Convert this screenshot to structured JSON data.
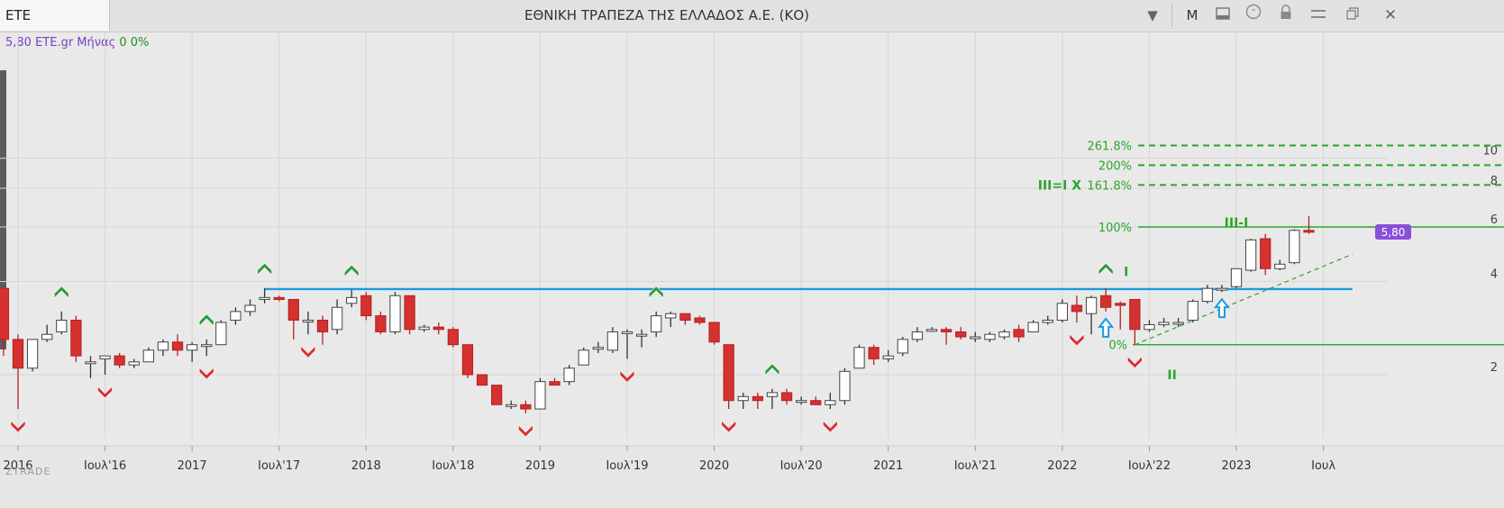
{
  "header": {
    "symbol": "ETE",
    "title": "ΕΘΝΙΚΗ ΤΡΑΠΕΖΑ ΤΗΣ ΕΛΛΑΔΟΣ Α.Ε. (ΚΟ)",
    "mode_label": "M"
  },
  "info": {
    "value_label": "5,80 ETE.gr Μήνας",
    "change": "0 0%"
  },
  "watermark": "ZTRADE",
  "colors": {
    "up": "#ffffff",
    "down": "#d63030",
    "support": "#1a9be0",
    "fib": "#2aa52a",
    "badge": "#8a4fd8"
  },
  "chart_data": {
    "type": "candlestick",
    "period": "monthly",
    "xlim": [
      "2016-01",
      "2023-09"
    ],
    "ylim": [
      1.0,
      11.0
    ],
    "y_scale": "log",
    "y_ticks": [
      2,
      4,
      6,
      8,
      10
    ],
    "x_ticks": [
      {
        "label": "2016",
        "date": "2016-01"
      },
      {
        "label": "Ιουλ'16",
        "date": "2016-07"
      },
      {
        "label": "2017",
        "date": "2017-01"
      },
      {
        "label": "Ιουλ'17",
        "date": "2017-07"
      },
      {
        "label": "2018",
        "date": "2018-01"
      },
      {
        "label": "Ιουλ'18",
        "date": "2018-07"
      },
      {
        "label": "2019",
        "date": "2019-01"
      },
      {
        "label": "Ιουλ'19",
        "date": "2019-07"
      },
      {
        "label": "2020",
        "date": "2020-01"
      },
      {
        "label": "Ιουλ'20",
        "date": "2020-07"
      },
      {
        "label": "2021",
        "date": "2021-01"
      },
      {
        "label": "Ιουλ'21",
        "date": "2021-07"
      },
      {
        "label": "2022",
        "date": "2022-01"
      },
      {
        "label": "Ιουλ'22",
        "date": "2022-07"
      },
      {
        "label": "2023",
        "date": "2023-01"
      },
      {
        "label": "Ιουλ",
        "date": "2023-07"
      }
    ],
    "last_price_label": "5,80",
    "last_price": 5.8,
    "candles": [
      [
        "2015-12",
        3.8,
        3.8,
        2.3,
        2.6
      ],
      [
        "2016-01",
        2.6,
        2.7,
        1.55,
        2.1
      ],
      [
        "2016-02",
        2.1,
        2.6,
        2.05,
        2.6
      ],
      [
        "2016-03",
        2.6,
        2.9,
        2.55,
        2.7
      ],
      [
        "2016-04",
        2.75,
        3.2,
        2.7,
        3.0
      ],
      [
        "2016-05",
        3.0,
        3.1,
        2.2,
        2.3
      ],
      [
        "2016-06",
        2.2,
        2.3,
        1.95,
        2.2
      ],
      [
        "2016-07",
        2.25,
        2.3,
        2.0,
        2.3
      ],
      [
        "2016-08",
        2.3,
        2.35,
        2.1,
        2.15
      ],
      [
        "2016-09",
        2.15,
        2.25,
        2.1,
        2.2
      ],
      [
        "2016-10",
        2.2,
        2.45,
        2.2,
        2.4
      ],
      [
        "2016-11",
        2.4,
        2.6,
        2.3,
        2.55
      ],
      [
        "2016-12",
        2.55,
        2.7,
        2.3,
        2.4
      ],
      [
        "2017-01",
        2.4,
        2.55,
        2.2,
        2.5
      ],
      [
        "2017-02",
        2.5,
        2.6,
        2.3,
        2.5
      ],
      [
        "2017-03",
        2.5,
        3.0,
        2.5,
        2.95
      ],
      [
        "2017-04",
        3.0,
        3.3,
        2.9,
        3.2
      ],
      [
        "2017-05",
        3.2,
        3.5,
        3.1,
        3.35
      ],
      [
        "2017-06",
        3.5,
        3.8,
        3.4,
        3.55
      ],
      [
        "2017-07",
        3.55,
        3.6,
        3.45,
        3.5
      ],
      [
        "2017-08",
        3.5,
        3.5,
        2.6,
        3.0
      ],
      [
        "2017-09",
        3.0,
        3.2,
        2.7,
        3.0
      ],
      [
        "2017-10",
        3.0,
        3.1,
        2.5,
        2.75
      ],
      [
        "2017-11",
        2.8,
        3.5,
        2.7,
        3.3
      ],
      [
        "2017-12",
        3.4,
        3.75,
        3.3,
        3.55
      ],
      [
        "2018-01",
        3.6,
        3.7,
        3.0,
        3.1
      ],
      [
        "2018-02",
        3.1,
        3.2,
        2.7,
        2.75
      ],
      [
        "2018-03",
        2.75,
        3.7,
        2.7,
        3.6
      ],
      [
        "2018-04",
        3.6,
        3.6,
        2.7,
        2.8
      ],
      [
        "2018-05",
        2.8,
        2.9,
        2.75,
        2.85
      ],
      [
        "2018-06",
        2.85,
        2.95,
        2.7,
        2.8
      ],
      [
        "2018-07",
        2.8,
        2.85,
        2.45,
        2.5
      ],
      [
        "2018-08",
        2.5,
        2.5,
        1.95,
        2.0
      ],
      [
        "2018-09",
        2.0,
        2.0,
        1.85,
        1.85
      ],
      [
        "2018-10",
        1.85,
        1.85,
        1.6,
        1.6
      ],
      [
        "2018-11",
        1.6,
        1.65,
        1.55,
        1.6
      ],
      [
        "2018-12",
        1.6,
        1.65,
        1.5,
        1.55
      ],
      [
        "2019-01",
        1.55,
        1.95,
        1.55,
        1.9
      ],
      [
        "2019-02",
        1.9,
        1.95,
        1.85,
        1.85
      ],
      [
        "2019-03",
        1.9,
        2.15,
        1.85,
        2.1
      ],
      [
        "2019-04",
        2.15,
        2.45,
        2.15,
        2.4
      ],
      [
        "2019-05",
        2.45,
        2.55,
        2.35,
        2.45
      ],
      [
        "2019-06",
        2.4,
        2.85,
        2.35,
        2.75
      ],
      [
        "2019-07",
        2.75,
        2.8,
        2.25,
        2.75
      ],
      [
        "2019-08",
        2.7,
        2.8,
        2.45,
        2.7
      ],
      [
        "2019-09",
        2.75,
        3.2,
        2.65,
        3.1
      ],
      [
        "2019-10",
        3.05,
        3.2,
        2.85,
        3.15
      ],
      [
        "2019-11",
        3.15,
        3.15,
        2.9,
        3.0
      ],
      [
        "2019-12",
        3.05,
        3.1,
        2.9,
        2.95
      ],
      [
        "2020-01",
        2.95,
        2.95,
        2.5,
        2.55
      ],
      [
        "2020-02",
        2.5,
        2.5,
        1.55,
        1.65
      ],
      [
        "2020-03",
        1.65,
        1.75,
        1.55,
        1.7
      ],
      [
        "2020-04",
        1.7,
        1.75,
        1.55,
        1.65
      ],
      [
        "2020-05",
        1.7,
        1.8,
        1.55,
        1.75
      ],
      [
        "2020-06",
        1.75,
        1.8,
        1.6,
        1.65
      ],
      [
        "2020-07",
        1.65,
        1.7,
        1.6,
        1.65
      ],
      [
        "2020-08",
        1.65,
        1.7,
        1.6,
        1.6
      ],
      [
        "2020-09",
        1.6,
        1.75,
        1.55,
        1.65
      ],
      [
        "2020-10",
        1.65,
        2.1,
        1.6,
        2.05
      ],
      [
        "2020-11",
        2.1,
        2.5,
        2.1,
        2.45
      ],
      [
        "2020-12",
        2.45,
        2.5,
        2.15,
        2.25
      ],
      [
        "2021-01",
        2.25,
        2.4,
        2.2,
        2.3
      ],
      [
        "2021-02",
        2.35,
        2.65,
        2.3,
        2.6
      ],
      [
        "2021-03",
        2.6,
        2.85,
        2.55,
        2.75
      ],
      [
        "2021-04",
        2.8,
        2.85,
        2.75,
        2.8
      ],
      [
        "2021-05",
        2.8,
        2.85,
        2.5,
        2.75
      ],
      [
        "2021-06",
        2.75,
        2.85,
        2.6,
        2.65
      ],
      [
        "2021-07",
        2.65,
        2.75,
        2.55,
        2.65
      ],
      [
        "2021-08",
        2.6,
        2.75,
        2.55,
        2.7
      ],
      [
        "2021-09",
        2.65,
        2.8,
        2.6,
        2.75
      ],
      [
        "2021-10",
        2.8,
        2.9,
        2.55,
        2.65
      ],
      [
        "2021-11",
        2.75,
        3.0,
        2.75,
        2.95
      ],
      [
        "2021-12",
        2.95,
        3.1,
        2.9,
        3.0
      ],
      [
        "2022-01",
        3.0,
        3.5,
        2.95,
        3.4
      ],
      [
        "2022-02",
        3.35,
        3.6,
        2.95,
        3.2
      ],
      [
        "2022-03",
        3.15,
        3.6,
        2.7,
        3.55
      ],
      [
        "2022-04",
        3.6,
        3.8,
        3.2,
        3.3
      ],
      [
        "2022-05",
        3.4,
        3.45,
        2.8,
        3.35
      ],
      [
        "2022-06",
        3.5,
        3.5,
        2.5,
        2.8
      ],
      [
        "2022-07",
        2.8,
        3.0,
        2.75,
        2.9
      ],
      [
        "2022-08",
        2.9,
        3.05,
        2.85,
        2.95
      ],
      [
        "2022-09",
        2.95,
        3.05,
        2.85,
        2.95
      ],
      [
        "2022-10",
        3.0,
        3.5,
        2.95,
        3.45
      ],
      [
        "2022-11",
        3.45,
        3.9,
        3.4,
        3.8
      ],
      [
        "2022-12",
        3.75,
        3.9,
        3.7,
        3.8
      ],
      [
        "2023-01",
        3.85,
        4.4,
        3.8,
        4.4
      ],
      [
        "2023-02",
        4.35,
        5.5,
        4.3,
        5.45
      ],
      [
        "2023-03",
        5.5,
        5.7,
        4.2,
        4.4
      ],
      [
        "2023-04",
        4.4,
        4.7,
        4.35,
        4.55
      ],
      [
        "2023-05",
        4.6,
        5.9,
        4.55,
        5.85
      ],
      [
        "2023-06",
        5.85,
        6.5,
        5.7,
        5.8
      ]
    ],
    "support_line": {
      "label": "",
      "value": 3.78,
      "from": "2017-06",
      "to": "2023-09"
    },
    "fibonacci": {
      "levels": [
        {
          "label": "0%",
          "value": 2.5,
          "style": "solid"
        },
        {
          "label": "100%",
          "value": 6.0,
          "style": "solid"
        },
        {
          "label": "161.8%",
          "value": 8.2,
          "style": "dashed"
        },
        {
          "label": "200%",
          "value": 9.5,
          "style": "dashed"
        },
        {
          "label": "261.8%",
          "value": 11.0,
          "style": "dashed"
        }
      ],
      "trendline": {
        "from": [
          "2022-06",
          2.5
        ],
        "to": [
          "2023-09",
          4.9
        ]
      }
    },
    "annotations": [
      {
        "text": "III=I X",
        "date": "2022-01",
        "value": 8.2
      },
      {
        "text": "III-I",
        "date": "2023-01",
        "value": 6.2
      },
      {
        "text": "I",
        "date": "2022-04",
        "value": 4.3
      },
      {
        "text": "II",
        "date": "2022-07",
        "value": 2.0
      }
    ],
    "peak_markers": [
      "2016-04",
      "2017-02",
      "2017-06",
      "2017-12",
      "2019-09",
      "2020-05",
      "2022-04"
    ],
    "trough_markers": [
      "2016-01",
      "2016-07",
      "2017-02",
      "2017-09",
      "2018-12",
      "2019-07",
      "2020-02",
      "2020-09",
      "2022-02",
      "2022-06"
    ],
    "up_arrows": [
      "2022-04",
      "2022-12"
    ]
  }
}
